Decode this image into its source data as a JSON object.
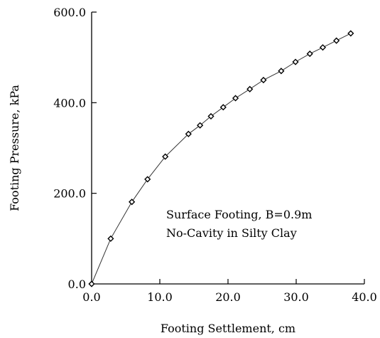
{
  "chart_data": {
    "type": "line",
    "title": "",
    "xlabel": "Footing Settlement, cm",
    "ylabel": "Footing Pressure, kPa",
    "xlim": [
      0,
      40
    ],
    "ylim": [
      0,
      600
    ],
    "x_ticks": [
      0,
      10,
      20,
      30,
      40
    ],
    "y_ticks": [
      0,
      200,
      400,
      600
    ],
    "x_tick_labels": [
      "0.0",
      "10.0",
      "20.0",
      "30.0",
      "40.0"
    ],
    "y_tick_labels": [
      "0.0",
      "200.0",
      "400.0",
      "600.0"
    ],
    "grid": false,
    "series": [
      {
        "marker": "diamond",
        "line_color": "#333333",
        "x": [
          0.0,
          2.8,
          5.9,
          8.2,
          10.8,
          14.2,
          15.9,
          17.5,
          19.3,
          21.1,
          23.2,
          25.2,
          27.8,
          29.9,
          32.0,
          33.9,
          35.9,
          38.0
        ],
        "y": [
          0,
          100,
          181,
          231,
          281,
          331,
          350,
          370,
          390,
          410,
          430,
          450,
          470,
          490,
          508,
          522,
          537,
          553
        ]
      }
    ],
    "annotations": [
      "Surface Footing, B=0.9m",
      "No-Cavity in Silty Clay"
    ]
  }
}
